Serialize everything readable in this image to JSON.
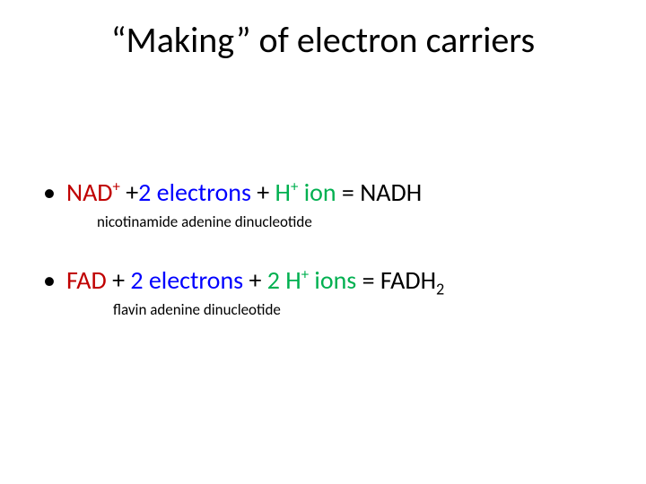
{
  "colors": {
    "text": "#000000",
    "nad": "#c00000",
    "two_electrons": "#0000ff",
    "h_ion": "#00b050",
    "background": "#ffffff"
  },
  "fonts": {
    "title_size": 40,
    "body_size": 28,
    "subnote_size": 17
  },
  "title": "“Making” of electron carriers",
  "bullets": [
    {
      "parts": {
        "nad": "NAD",
        "nad_sup": "+",
        "plus1": " +",
        "two_e": "2 electrons",
        "plus2": " + ",
        "h": "H",
        "h_sup": "+",
        "ion": " ion",
        "eq": "  = NADH"
      },
      "subnote": "nicotinamide adenine dinucleotide"
    },
    {
      "parts": {
        "fad": "FAD",
        "plus1": " + ",
        "two_e": "2 electrons",
        "plus2": " + ",
        "two_h_pre": "2 H",
        "h_sup": "+",
        "ions": " ions",
        "eq": " = FADH",
        "eq_sub": "2"
      },
      "subnote": "flavin adenine dinucleotide"
    }
  ]
}
